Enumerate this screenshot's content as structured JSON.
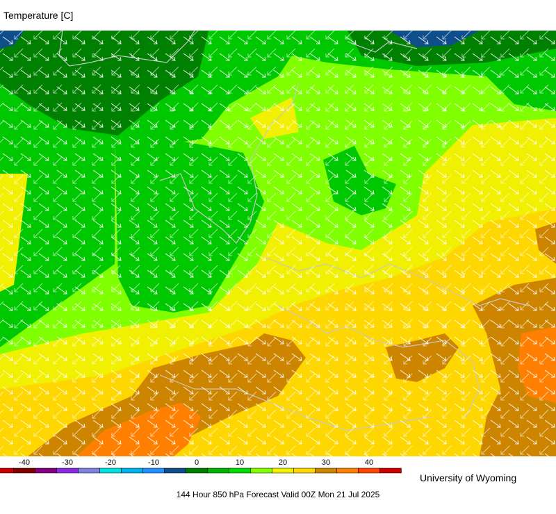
{
  "header": {
    "title": "Temperature [C]"
  },
  "colorbar": {
    "ticks": [
      -40,
      -30,
      -20,
      -10,
      0,
      10,
      20,
      30,
      40
    ],
    "colors": [
      "#c80000",
      "#800000",
      "#800080",
      "#8a2be2",
      "#8080e0",
      "#00e0e0",
      "#00b0f0",
      "#1e90ff",
      "#104e8b",
      "#008000",
      "#00b400",
      "#00dc00",
      "#80ff00",
      "#f0f000",
      "#ffd700",
      "#cd8500",
      "#ff8000",
      "#ff4500",
      "#cd0000"
    ]
  },
  "footer": {
    "credit": "University of Wyoming",
    "caption": "144 Hour 850 hPa Forecast Valid 00Z Mon 21 Jul 2025"
  }
}
